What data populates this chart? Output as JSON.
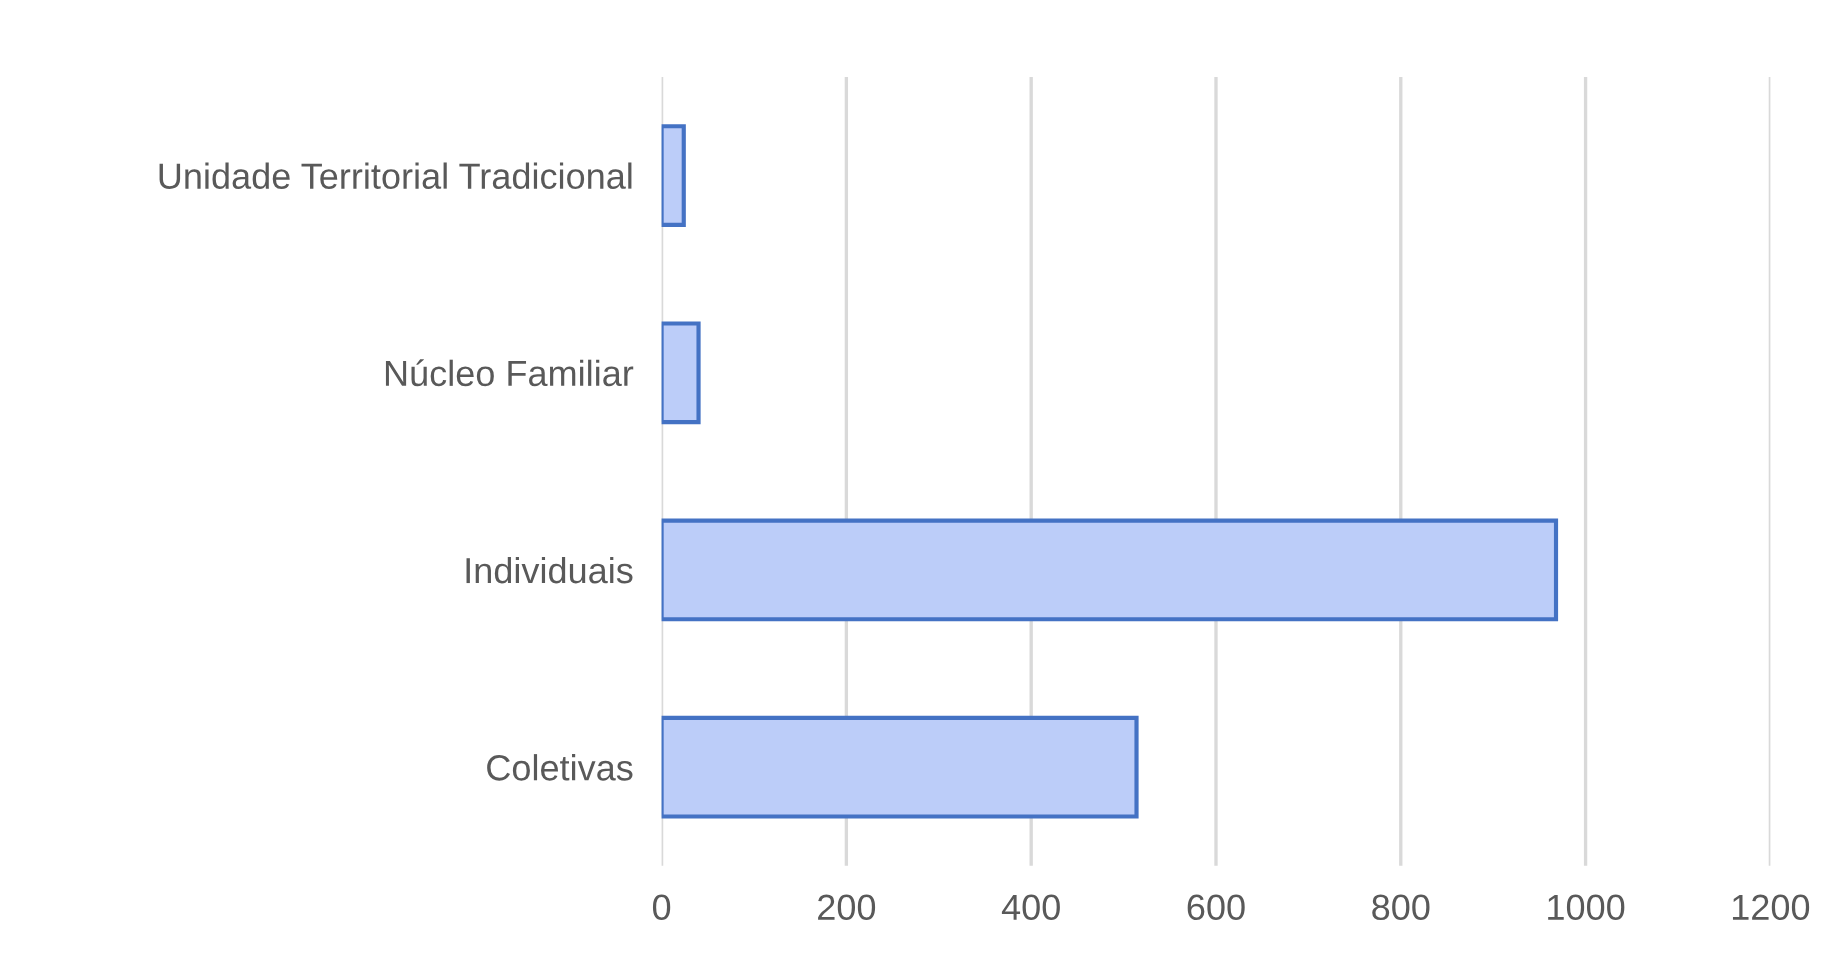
{
  "chart_data": {
    "type": "bar",
    "orientation": "horizontal",
    "categories": [
      "Unidade Territorial Tradicional",
      "Núcleo Familiar",
      "Individuais",
      "Coletivas"
    ],
    "series": [
      {
        "color": "#bccdf9",
        "values": [
          24,
          40,
          968,
          514
        ]
      }
    ],
    "xlim": [
      0,
      1200
    ],
    "xticks": [
      0,
      200,
      400,
      600,
      800,
      1000,
      1200
    ],
    "grid": "x"
  }
}
